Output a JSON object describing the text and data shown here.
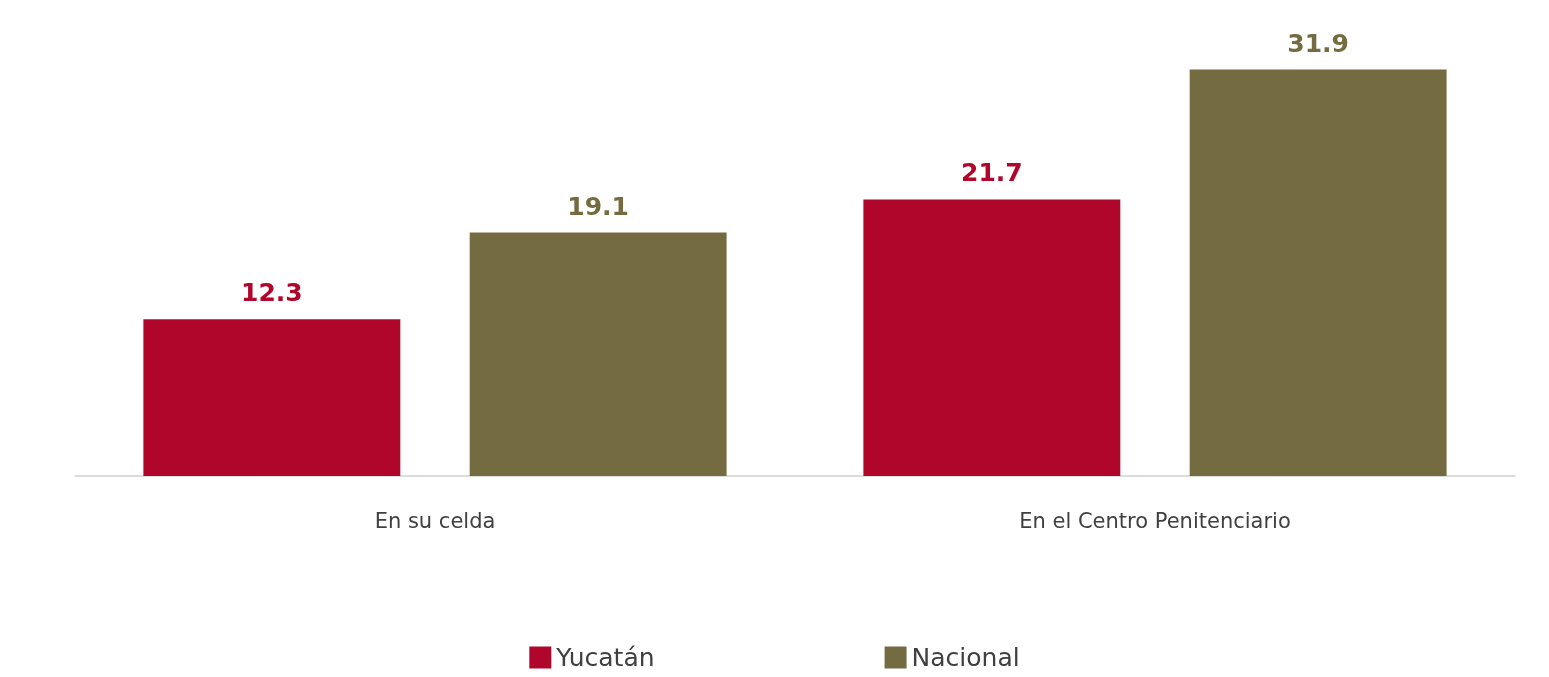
{
  "chart_data": {
    "type": "bar",
    "categories": [
      "En su celda",
      "En el Centro Penitenciario"
    ],
    "series": [
      {
        "name": "Yucatán",
        "color": "#b0062c",
        "values": [
          12.3,
          21.7
        ]
      },
      {
        "name": "Nacional",
        "color": "#756b41",
        "values": [
          19.1,
          31.9
        ]
      }
    ],
    "data_labels": true,
    "legend": "bottom"
  }
}
